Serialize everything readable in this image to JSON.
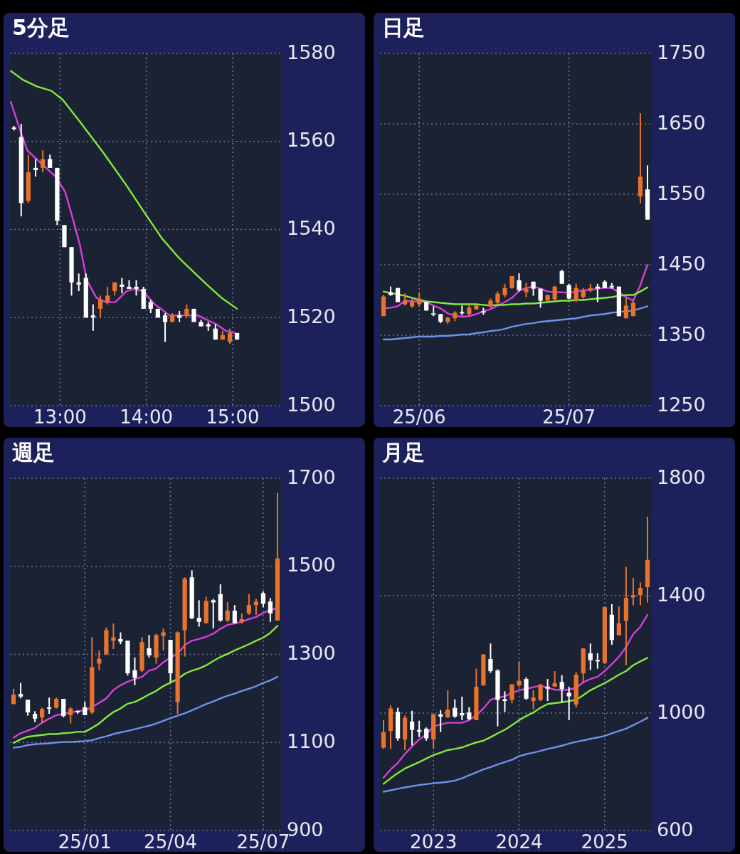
{
  "chart_data": [
    {
      "type": "candlestick",
      "title": "5分足",
      "grid": true,
      "xlim": [
        12.42,
        15.56
      ],
      "xticks": [
        {
          "value": 13,
          "label": "13:00"
        },
        {
          "value": 14,
          "label": "14:00"
        },
        {
          "value": 15,
          "label": "15:00"
        }
      ],
      "ylim": [
        1500,
        1580
      ],
      "yticks": [
        1500,
        1520,
        1540,
        1560,
        1580
      ],
      "x": [
        12.467,
        12.55,
        12.633,
        12.717,
        12.8,
        12.883,
        12.967,
        13.05,
        13.133,
        13.217,
        13.3,
        13.383,
        13.467,
        13.55,
        13.633,
        13.717,
        13.8,
        13.883,
        13.967,
        14.05,
        14.133,
        14.217,
        14.3,
        14.383,
        14.467,
        14.55,
        14.633,
        14.717,
        14.8,
        14.883,
        14.967,
        15.05
      ],
      "ohlc": [
        [
          1563,
          1563.5,
          1562.5,
          1563
        ],
        [
          1561,
          1564,
          1543,
          1546
        ],
        [
          1546.5,
          1557,
          1546,
          1553
        ],
        [
          1554,
          1556,
          1552,
          1553.5
        ],
        [
          1554,
          1558,
          1553,
          1556
        ],
        [
          1556,
          1557,
          1554,
          1554
        ],
        [
          1554,
          1554,
          1541,
          1542
        ],
        [
          1541,
          1541,
          1536,
          1536
        ],
        [
          1536,
          1536,
          1525,
          1528
        ],
        [
          1528,
          1530,
          1526,
          1527.5
        ],
        [
          1529,
          1530,
          1520,
          1520
        ],
        [
          1520.5,
          1523,
          1517,
          1520
        ],
        [
          1522,
          1525,
          1520,
          1524
        ],
        [
          1523.5,
          1527,
          1523,
          1525
        ],
        [
          1526,
          1528,
          1525,
          1528
        ],
        [
          1527.5,
          1529,
          1525.5,
          1527
        ],
        [
          1527,
          1528.5,
          1526.5,
          1526.5
        ],
        [
          1527,
          1528.5,
          1525,
          1526.5
        ],
        [
          1526.5,
          1527,
          1522,
          1522
        ],
        [
          1523.5,
          1524,
          1521,
          1522
        ],
        [
          1522,
          1522,
          1520,
          1520
        ],
        [
          1520.5,
          1521,
          1514.5,
          1519
        ],
        [
          1519,
          1521,
          1519,
          1520.5
        ],
        [
          1520.5,
          1521.5,
          1519,
          1520
        ],
        [
          1520.5,
          1523,
          1520,
          1522
        ],
        [
          1522,
          1522,
          1519,
          1519
        ],
        [
          1519,
          1519.5,
          1518,
          1518
        ],
        [
          1518.5,
          1519,
          1517,
          1518
        ],
        [
          1517.5,
          1518.5,
          1515,
          1515
        ],
        [
          1515,
          1517,
          1515,
          1516
        ],
        [
          1514.5,
          1517.5,
          1514,
          1516.5
        ],
        [
          1516.5,
          1516.5,
          1515,
          1515
        ]
      ],
      "colors": [
        "#ffffff",
        "#ffffff",
        "#e8732c",
        "#ffffff",
        "#e8732c",
        "#ffffff",
        "#ffffff",
        "#ffffff",
        "#ffffff",
        "#ffffff",
        "#ffffff",
        "#ffffff",
        "#e8732c",
        "#e8732c",
        "#e8732c",
        "#ffffff",
        "#ffffff",
        "#ffffff",
        "#ffffff",
        "#ffffff",
        "#ffffff",
        "#ffffff",
        "#e8732c",
        "#ffffff",
        "#e8732c",
        "#ffffff",
        "#ffffff",
        "#ffffff",
        "#ffffff",
        "#e8732c",
        "#e8732c",
        "#ffffff"
      ],
      "series": [
        {
          "type": "line",
          "color": "#d63fd6",
          "x": [
            12.43,
            12.53,
            12.62,
            12.81,
            12.95,
            13.06,
            13.14,
            13.23,
            13.31,
            13.42,
            13.53,
            13.64,
            13.77,
            13.86,
            13.96,
            14.1,
            14.27,
            14.43,
            14.6,
            14.7,
            14.81,
            14.92,
            15.03
          ],
          "values": [
            1569,
            1563,
            1558,
            1554.5,
            1552,
            1548.5,
            1543,
            1536.5,
            1528.5,
            1524.5,
            1523.5,
            1523.5,
            1526,
            1526.5,
            1526,
            1523,
            1520.5,
            1520.5,
            1520.5,
            1519.5,
            1518.5,
            1517,
            1516.5
          ]
        },
        {
          "type": "line",
          "color": "#84e83c",
          "x": [
            12.43,
            12.57,
            12.73,
            12.9,
            13.03,
            13.23,
            13.5,
            13.77,
            13.99,
            14.18,
            14.38,
            14.54,
            14.7,
            14.87,
            15.05
          ],
          "values": [
            1576,
            1574,
            1572.5,
            1571.5,
            1569.5,
            1564.5,
            1557.5,
            1550,
            1543.5,
            1538,
            1533.5,
            1530.5,
            1527.5,
            1524.5,
            1522
          ]
        }
      ]
    },
    {
      "type": "candlestick",
      "title": "日足",
      "grid": true,
      "ylim": [
        1250,
        1750
      ],
      "yticks": [
        1250,
        1350,
        1450,
        1550,
        1650,
        1750
      ],
      "categories": [
        null,
        null,
        null,
        null,
        null,
        "25/06",
        null,
        null,
        null,
        null,
        null,
        null,
        null,
        null,
        null,
        null,
        null,
        null,
        null,
        null,
        null,
        null,
        null,
        null,
        null,
        null,
        "25/07",
        null,
        null,
        null,
        null,
        null,
        null,
        null,
        null,
        null,
        null,
        null
      ],
      "ohlc": [
        [
          1377,
          1407,
          1377,
          1405
        ],
        [
          1411,
          1419,
          1406,
          1407
        ],
        [
          1417,
          1417,
          1397,
          1397
        ],
        [
          1394,
          1409,
          1392,
          1399
        ],
        [
          1391,
          1401,
          1389,
          1397
        ],
        [
          1394,
          1411,
          1391,
          1402
        ],
        [
          1397,
          1397,
          1385,
          1385
        ],
        [
          1380,
          1391,
          1377,
          1378
        ],
        [
          1380,
          1380,
          1367,
          1369
        ],
        [
          1369,
          1376,
          1366,
          1375
        ],
        [
          1374,
          1384,
          1370,
          1382
        ],
        [
          1382,
          1392,
          1378,
          1380
        ],
        [
          1380,
          1394,
          1377,
          1389
        ],
        [
          1387,
          1393,
          1386,
          1392
        ],
        [
          1383,
          1389,
          1379,
          1381
        ],
        [
          1391,
          1402,
          1389,
          1399
        ],
        [
          1396,
          1412,
          1394,
          1409
        ],
        [
          1407,
          1423,
          1404,
          1417
        ],
        [
          1417,
          1434,
          1416,
          1434
        ],
        [
          1428,
          1438,
          1412,
          1414
        ],
        [
          1411,
          1424,
          1404,
          1416
        ],
        [
          1426,
          1426,
          1406,
          1416
        ],
        [
          1416,
          1416,
          1389,
          1399
        ],
        [
          1399,
          1407,
          1399,
          1407
        ],
        [
          1401,
          1420,
          1399,
          1419
        ],
        [
          1441,
          1443,
          1423,
          1423
        ],
        [
          1421,
          1423,
          1401,
          1402
        ],
        [
          1399,
          1423,
          1397,
          1417
        ],
        [
          1404,
          1417,
          1402,
          1414
        ],
        [
          1414,
          1423,
          1411,
          1417
        ],
        [
          1419,
          1423,
          1397,
          1416
        ],
        [
          1426,
          1428,
          1417,
          1417
        ],
        [
          1419,
          1424,
          1416,
          1418
        ],
        [
          1419,
          1419,
          1377,
          1377
        ],
        [
          1374,
          1404,
          1374,
          1392
        ],
        [
          1377,
          1401,
          1377,
          1396
        ],
        [
          1547,
          1665,
          1537,
          1575
        ],
        [
          1557,
          1591,
          1514,
          1514
        ]
      ],
      "colors": [
        "#e8732c",
        "#ffffff",
        "#ffffff",
        "#e8732c",
        "#e8732c",
        "#e8732c",
        "#ffffff",
        "#ffffff",
        "#ffffff",
        "#e8732c",
        "#e8732c",
        "#ffffff",
        "#e8732c",
        "#e8732c",
        "#ffffff",
        "#e8732c",
        "#e8732c",
        "#e8732c",
        "#e8732c",
        "#ffffff",
        "#e8732c",
        "#ffffff",
        "#ffffff",
        "#e8732c",
        "#e8732c",
        "#ffffff",
        "#ffffff",
        "#e8732c",
        "#e8732c",
        "#e8732c",
        "#ffffff",
        "#ffffff",
        "#ffffff",
        "#ffffff",
        "#e8732c",
        "#e8732c",
        "#e8732c",
        "#ffffff"
      ],
      "series": [
        {
          "type": "line",
          "color": "#d63fd6",
          "values": [
            1388,
            1389,
            1391,
            1399,
            1398,
            1398,
            1397,
            1392,
            1388,
            1381,
            1378,
            1376,
            1377,
            1380,
            1384,
            1387,
            1392,
            1397,
            1403,
            1413,
            1417,
            1419,
            1416,
            1412,
            1411,
            1411,
            1410,
            1412,
            1414,
            1414,
            1416,
            1417,
            1417,
            1411,
            1404,
            1399,
            1421,
            1450
          ]
        },
        {
          "type": "line",
          "color": "#84e83c",
          "values": [
            1412,
            1410,
            1408,
            1406,
            1403,
            1400,
            1398,
            1397,
            1396,
            1395,
            1394,
            1394,
            1394,
            1394,
            1393,
            1392,
            1393,
            1393,
            1394,
            1394,
            1395,
            1395,
            1396,
            1397,
            1398,
            1399,
            1399,
            1400,
            1400,
            1401,
            1402,
            1403,
            1404,
            1406,
            1407,
            1407,
            1412,
            1418
          ]
        },
        {
          "type": "line",
          "color": "#6d93e6",
          "values": [
            1344,
            1344,
            1345,
            1346,
            1347,
            1348,
            1348,
            1348,
            1349,
            1349,
            1350,
            1351,
            1351,
            1353,
            1354,
            1356,
            1357,
            1359,
            1362,
            1364,
            1366,
            1367,
            1369,
            1370,
            1371,
            1372,
            1373,
            1374,
            1376,
            1378,
            1379,
            1380,
            1382,
            1383,
            1384,
            1385,
            1388,
            1391
          ]
        }
      ]
    },
    {
      "type": "candlestick",
      "title": "週足",
      "grid": true,
      "ylim": [
        900,
        1700
      ],
      "yticks": [
        900,
        1100,
        1300,
        1500,
        1700
      ],
      "categories": [
        null,
        null,
        null,
        null,
        null,
        null,
        null,
        null,
        null,
        null,
        "25/01",
        null,
        null,
        null,
        null,
        null,
        null,
        null,
        null,
        null,
        null,
        null,
        "25/04",
        null,
        null,
        null,
        null,
        null,
        null,
        null,
        null,
        null,
        null,
        null,
        null,
        "25/07",
        null,
        null
      ],
      "ohlc": [
        [
          1187,
          1222,
          1187,
          1209
        ],
        [
          1210,
          1235,
          1200,
          1204
        ],
        [
          1197,
          1197,
          1161,
          1168
        ],
        [
          1165,
          1171,
          1146,
          1154
        ],
        [
          1157,
          1179,
          1143,
          1176
        ],
        [
          1178,
          1202,
          1165,
          1176
        ],
        [
          1179,
          1202,
          1177,
          1199
        ],
        [
          1199,
          1199,
          1157,
          1160
        ],
        [
          1162,
          1180,
          1143,
          1177
        ],
        [
          1170,
          1173,
          1165,
          1169
        ],
        [
          1180,
          1192,
          1162,
          1162
        ],
        [
          1168,
          1339,
          1165,
          1271
        ],
        [
          1279,
          1309,
          1264,
          1290
        ],
        [
          1301,
          1361,
          1298,
          1355
        ],
        [
          1331,
          1370,
          1312,
          1339
        ],
        [
          1335,
          1350,
          1323,
          1329
        ],
        [
          1331,
          1331,
          1252,
          1257
        ],
        [
          1264,
          1293,
          1230,
          1247
        ],
        [
          1263,
          1339,
          1260,
          1328
        ],
        [
          1314,
          1344,
          1293,
          1298
        ],
        [
          1293,
          1347,
          1279,
          1344
        ],
        [
          1342,
          1359,
          1309,
          1350
        ],
        [
          1333,
          1333,
          1238,
          1257
        ],
        [
          1192,
          1352,
          1165,
          1350
        ],
        [
          1355,
          1475,
          1295,
          1472
        ],
        [
          1475,
          1491,
          1380,
          1382
        ],
        [
          1383,
          1423,
          1363,
          1374
        ],
        [
          1371,
          1431,
          1370,
          1421
        ],
        [
          1423,
          1426,
          1359,
          1418
        ],
        [
          1437,
          1459,
          1374,
          1377
        ],
        [
          1377,
          1419,
          1374,
          1399
        ],
        [
          1399,
          1412,
          1370,
          1371
        ],
        [
          1373,
          1393,
          1370,
          1380
        ],
        [
          1393,
          1437,
          1390,
          1412
        ],
        [
          1412,
          1426,
          1390,
          1420
        ],
        [
          1439,
          1443,
          1407,
          1415
        ],
        [
          1420,
          1428,
          1374,
          1393
        ],
        [
          1377,
          1667,
          1377,
          1518
        ]
      ],
      "colors": [
        "#e8732c",
        "#ffffff",
        "#ffffff",
        "#ffffff",
        "#e8732c",
        "#ffffff",
        "#e8732c",
        "#ffffff",
        "#e8732c",
        "#ffffff",
        "#ffffff",
        "#e8732c",
        "#e8732c",
        "#e8732c",
        "#e8732c",
        "#ffffff",
        "#ffffff",
        "#ffffff",
        "#e8732c",
        "#ffffff",
        "#e8732c",
        "#e8732c",
        "#ffffff",
        "#e8732c",
        "#e8732c",
        "#ffffff",
        "#ffffff",
        "#e8732c",
        "#ffffff",
        "#ffffff",
        "#e8732c",
        "#ffffff",
        "#e8732c",
        "#e8732c",
        "#e8732c",
        "#ffffff",
        "#ffffff",
        "#e8732c"
      ],
      "series": [
        {
          "type": "line",
          "color": "#d63fd6",
          "values": [
            1111,
            1121,
            1127,
            1133,
            1145,
            1154,
            1162,
            1165,
            1168,
            1171,
            1173,
            1180,
            1190,
            1200,
            1219,
            1230,
            1238,
            1244,
            1249,
            1263,
            1268,
            1282,
            1293,
            1301,
            1321,
            1331,
            1335,
            1340,
            1347,
            1358,
            1367,
            1370,
            1374,
            1380,
            1385,
            1394,
            1401,
            1405
          ]
        },
        {
          "type": "line",
          "color": "#84e83c",
          "values": [
            1099,
            1107,
            1113,
            1115,
            1117,
            1119,
            1119,
            1121,
            1122,
            1124,
            1124,
            1133,
            1143,
            1157,
            1169,
            1177,
            1188,
            1192,
            1200,
            1209,
            1217,
            1228,
            1236,
            1244,
            1256,
            1263,
            1268,
            1275,
            1285,
            1294,
            1301,
            1309,
            1316,
            1323,
            1331,
            1338,
            1349,
            1365
          ]
        },
        {
          "type": "line",
          "color": "#6d93e6",
          "values": [
            1088,
            1090,
            1094,
            1096,
            1097,
            1098,
            1100,
            1101,
            1101,
            1102,
            1103,
            1105,
            1110,
            1114,
            1119,
            1123,
            1126,
            1130,
            1134,
            1138,
            1143,
            1149,
            1155,
            1161,
            1166,
            1173,
            1180,
            1187,
            1193,
            1200,
            1206,
            1211,
            1217,
            1222,
            1228,
            1235,
            1241,
            1249
          ]
        }
      ]
    },
    {
      "type": "candlestick",
      "title": "月足",
      "grid": true,
      "ylim": [
        600,
        1800
      ],
      "yticks": [
        600,
        1000,
        1400,
        1800
      ],
      "categories": [
        null,
        null,
        null,
        null,
        null,
        null,
        null,
        "2023",
        null,
        null,
        null,
        null,
        null,
        null,
        null,
        null,
        null,
        null,
        null,
        "2024",
        null,
        null,
        null,
        null,
        null,
        null,
        null,
        null,
        null,
        null,
        null,
        "2025",
        null,
        null,
        null,
        null,
        null,
        null
      ],
      "ohlc": [
        [
          882,
          976,
          878,
          935
        ],
        [
          939,
          1026,
          878,
          1016
        ],
        [
          1004,
          1018,
          906,
          914
        ],
        [
          910,
          992,
          874,
          984
        ],
        [
          971,
          1008,
          890,
          943
        ],
        [
          943,
          974,
          918,
          936
        ],
        [
          947,
          951,
          906,
          914
        ],
        [
          910,
          996,
          878,
          996
        ],
        [
          996,
          1010,
          935,
          988
        ],
        [
          985,
          1078,
          984,
          1012
        ],
        [
          1018,
          1047,
          984,
          988
        ],
        [
          1000,
          1056,
          976,
          992
        ],
        [
          1002,
          1020,
          976,
          980
        ],
        [
          976,
          1151,
          976,
          1090
        ],
        [
          1094,
          1200,
          1094,
          1200
        ],
        [
          1184,
          1237,
          1137,
          1143
        ],
        [
          1145,
          1149,
          955,
          1045
        ],
        [
          1047,
          1074,
          1004,
          1041
        ],
        [
          1045,
          1098,
          1033,
          1098
        ],
        [
          1094,
          1176,
          1090,
          1110
        ],
        [
          1116,
          1122,
          1045,
          1049
        ],
        [
          1041,
          1078,
          1012,
          1053
        ],
        [
          1045,
          1100,
          1041,
          1096
        ],
        [
          1090,
          1116,
          1041,
          1083
        ],
        [
          1090,
          1143,
          1090,
          1102
        ],
        [
          1106,
          1129,
          1037,
          1082
        ],
        [
          1069,
          1090,
          976,
          1057
        ],
        [
          1029,
          1140,
          1018,
          1131
        ],
        [
          1135,
          1222,
          1102,
          1220
        ],
        [
          1204,
          1237,
          1147,
          1180
        ],
        [
          1181,
          1204,
          1151,
          1176
        ],
        [
          1171,
          1363,
          1167,
          1361
        ],
        [
          1335,
          1371,
          1233,
          1249
        ],
        [
          1265,
          1363,
          1265,
          1306
        ],
        [
          1314,
          1498,
          1163,
          1392
        ],
        [
          1394,
          1461,
          1367,
          1402
        ],
        [
          1402,
          1445,
          1367,
          1426
        ],
        [
          1429,
          1669,
          1377,
          1522
        ]
      ],
      "colors": [
        "#e8732c",
        "#e8732c",
        "#ffffff",
        "#e8732c",
        "#ffffff",
        "#ffffff",
        "#ffffff",
        "#e8732c",
        "#ffffff",
        "#e8732c",
        "#ffffff",
        "#ffffff",
        "#ffffff",
        "#e8732c",
        "#e8732c",
        "#ffffff",
        "#ffffff",
        "#ffffff",
        "#e8732c",
        "#e8732c",
        "#ffffff",
        "#e8732c",
        "#e8732c",
        "#ffffff",
        "#e8732c",
        "#ffffff",
        "#ffffff",
        "#e8732c",
        "#e8732c",
        "#ffffff",
        "#ffffff",
        "#e8732c",
        "#ffffff",
        "#e8732c",
        "#e8732c",
        "#e8732c",
        "#e8732c",
        "#e8732c"
      ],
      "series": [
        {
          "type": "line",
          "color": "#d63fd6",
          "values": [
            780,
            808,
            830,
            861,
            887,
            910,
            927,
            955,
            961,
            967,
            967,
            967,
            976,
            992,
            1016,
            1045,
            1053,
            1057,
            1069,
            1078,
            1083,
            1088,
            1094,
            1086,
            1080,
            1078,
            1080,
            1086,
            1105,
            1116,
            1124,
            1143,
            1167,
            1192,
            1225,
            1269,
            1294,
            1335
          ]
        },
        {
          "type": "line",
          "color": "#84e83c",
          "values": [
            759,
            778,
            796,
            811,
            822,
            833,
            845,
            857,
            865,
            874,
            878,
            883,
            892,
            900,
            906,
            918,
            931,
            943,
            959,
            976,
            990,
            1002,
            1018,
            1031,
            1034,
            1037,
            1041,
            1045,
            1061,
            1078,
            1090,
            1102,
            1116,
            1131,
            1143,
            1163,
            1176,
            1188
          ]
        },
        {
          "type": "line",
          "color": "#6d93e6",
          "values": [
            732,
            737,
            742,
            747,
            751,
            755,
            758,
            761,
            763,
            766,
            770,
            778,
            788,
            798,
            808,
            816,
            825,
            833,
            841,
            853,
            860,
            865,
            871,
            878,
            883,
            889,
            896,
            902,
            907,
            912,
            917,
            922,
            931,
            939,
            947,
            959,
            971,
            984
          ]
        }
      ]
    }
  ]
}
